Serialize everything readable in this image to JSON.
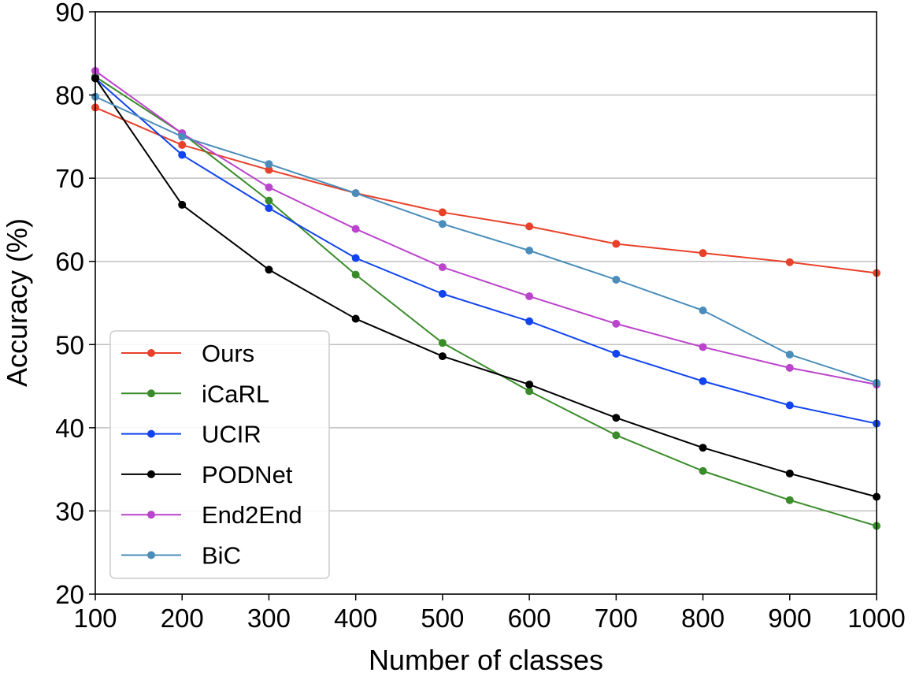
{
  "chart_data": {
    "type": "line",
    "title": "",
    "xlabel": "Number of classes",
    "ylabel": "Accuracy (%)",
    "x": [
      100,
      200,
      300,
      400,
      500,
      600,
      700,
      800,
      900,
      1000
    ],
    "xlim": [
      100,
      1000
    ],
    "ylim": [
      20,
      90
    ],
    "xticks": [
      "100",
      "200",
      "300",
      "400",
      "500",
      "600",
      "700",
      "800",
      "900",
      "1000"
    ],
    "yticks": [
      "20",
      "30",
      "40",
      "50",
      "60",
      "70",
      "80",
      "90"
    ],
    "ytick_values": [
      20,
      30,
      40,
      50,
      60,
      70,
      80,
      90
    ],
    "grid": "horizontal",
    "legend_position": "lower-left",
    "series": [
      {
        "name": "Ours",
        "color": "#e8412a",
        "values": [
          78.5,
          74.0,
          71.0,
          68.2,
          65.9,
          64.2,
          62.1,
          61.0,
          59.9,
          58.6
        ]
      },
      {
        "name": "iCaRL",
        "color": "#3a8c2a",
        "values": [
          82.2,
          75.4,
          67.3,
          58.4,
          50.2,
          44.4,
          39.1,
          34.8,
          31.3,
          28.2
        ]
      },
      {
        "name": "UCIR",
        "color": "#1144ee",
        "values": [
          82.0,
          72.8,
          66.4,
          60.4,
          56.1,
          52.8,
          48.9,
          45.6,
          42.7,
          40.5
        ]
      },
      {
        "name": "PODNet",
        "color": "#000000",
        "values": [
          82.0,
          66.8,
          59.0,
          53.1,
          48.6,
          45.2,
          41.2,
          37.6,
          34.5,
          31.7
        ]
      },
      {
        "name": "End2End",
        "color": "#bb44cc",
        "values": [
          82.9,
          75.4,
          68.9,
          63.9,
          59.3,
          55.8,
          52.5,
          49.7,
          47.2,
          45.2
        ]
      },
      {
        "name": "BiC",
        "color": "#4a8dba",
        "values": [
          79.8,
          75.0,
          71.7,
          68.2,
          64.5,
          61.3,
          57.8,
          54.1,
          48.8,
          45.4
        ]
      }
    ]
  }
}
